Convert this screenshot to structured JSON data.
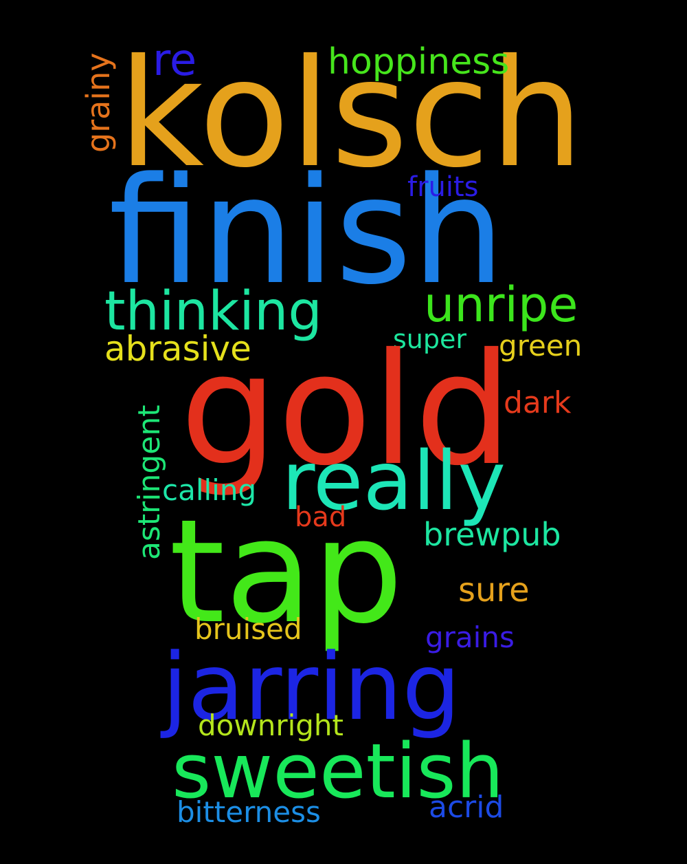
{
  "words": {
    "kolsch": "kolsch",
    "finish": "finish",
    "gold": "gold",
    "tap": "tap",
    "jarring": "jarring",
    "sweetish": "sweetish",
    "really": "really",
    "thinking": "thinking",
    "unripe": "unripe",
    "hoppiness": "hoppiness",
    "re": "re",
    "grainy": "grainy",
    "fruits": "fruits",
    "abrasive": "abrasive",
    "super": "super",
    "green": "green",
    "dark": "dark",
    "astringent": "astringent",
    "calling": "calling",
    "bad": "bad",
    "brewpub": "brewpub",
    "sure": "sure",
    "bruised": "bruised",
    "grains": "grains",
    "downright": "downright",
    "bitterness": "bitterness",
    "acrid": "acrid"
  },
  "colors": {
    "background": "#000000",
    "kolsch": "#e5a11c",
    "finish": "#1b7ee6",
    "gold": "#e3301c",
    "tap": "#43e819",
    "jarring": "#1c25e3",
    "sweetish": "#18e85a",
    "really": "#1de6b7",
    "thinking": "#1de6a1",
    "unripe": "#3ce51c",
    "hoppiness": "#46e51c",
    "re": "#2a1ce5",
    "grainy": "#e5731c",
    "fruits": "#2b1ce5",
    "abrasive": "#e5e01c",
    "super": "#1de69d",
    "green": "#e5cf1c",
    "dark": "#e53a1c",
    "astringent": "#1de676",
    "calling": "#1de6a8",
    "bad": "#e5391c",
    "brewpub": "#1de6a1",
    "sure": "#e5a11c",
    "bruised": "#e5c51c",
    "grains": "#3a1ce5",
    "downright": "#b4e51c",
    "bitterness": "#1c8ee5",
    "acrid": "#1c4ae5"
  }
}
